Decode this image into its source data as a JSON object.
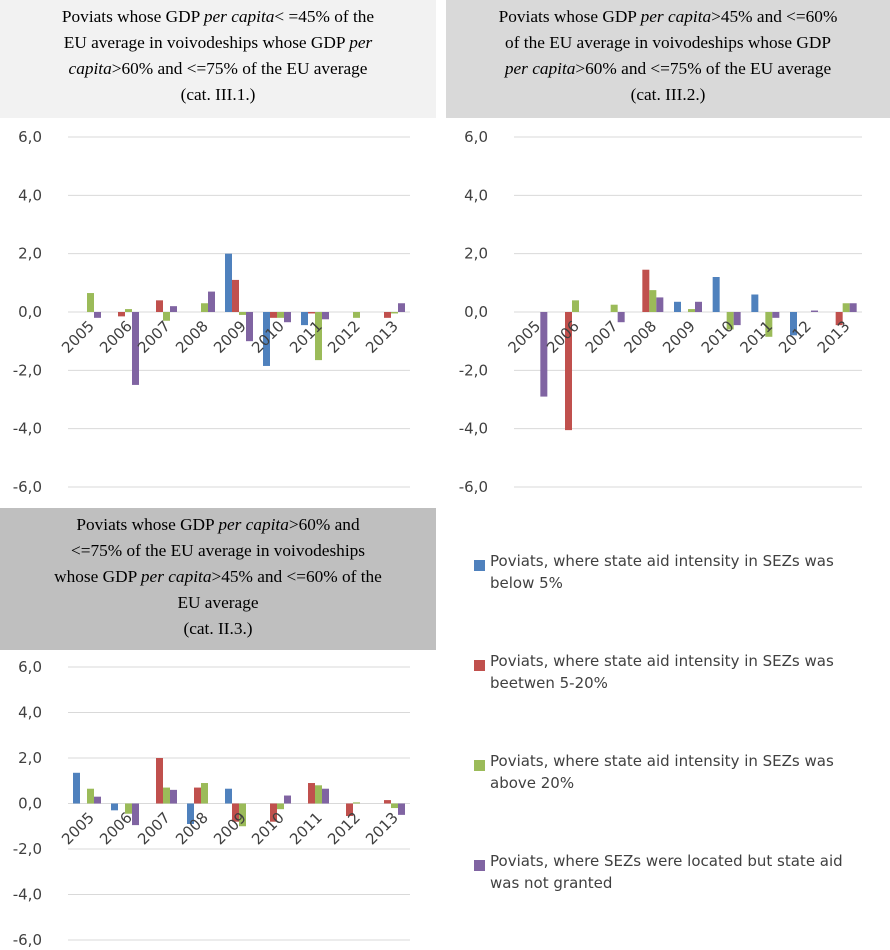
{
  "titles": {
    "panel1": {
      "l1a": "Poviats whose GDP ",
      "l1i": "per capita",
      "l1b": "< =45% of the",
      "l2a": "EU average in voivodeships whose GDP ",
      "l2i": "per",
      "l3i": "capita",
      "l3b": ">60% and <=75% of the  EU average",
      "l4": "(cat. III.1.)"
    },
    "panel2": {
      "l1a": "Poviats whose GDP ",
      "l1i": "per capita",
      "l1b": ">45% and <=60%",
      "l2": "of the EU average in voivodeships whose GDP",
      "l3i": "per capita",
      "l3b": ">60% and <=75% of the EU average",
      "l4": "(cat. III.2.)"
    },
    "panel3": {
      "l1a": "Poviats whose GDP ",
      "l1i": "per capita",
      "l1b": ">60% and",
      "l2": "<=75% of the EU average in voivodeships",
      "l3a": "whose GDP ",
      "l3i": "per capita",
      "l3b": ">45% and <=60% of the",
      "l4": "EU average",
      "l5": "(cat. II.3.)"
    }
  },
  "legend": [
    {
      "label": "Poviats, where state aid intensity in SEZs was below 5%",
      "color": "#4f81bd"
    },
    {
      "label": "Poviats, where state aid intensity in SEZs was beetwen 5-20%",
      "color": "#c0504d"
    },
    {
      "label": "Poviats, where state aid intensity in SEZs was above 20%",
      "color": "#9bbb59"
    },
    {
      "label": "Poviats, where SEZs were located but state aid was not granted",
      "color": "#8064a2"
    }
  ],
  "chart_data": [
    {
      "type": "bar",
      "categories": [
        "2005",
        "2006",
        "2007",
        "2008",
        "2009",
        "2010",
        "2011",
        "2012",
        "2013"
      ],
      "ylim": [
        -6,
        6
      ],
      "yticks": [
        "6,0",
        "4,0",
        "2,0",
        "0,0",
        "-2,0",
        "-4,0",
        "-6,0"
      ],
      "series": [
        {
          "name": "Poviats, where state aid intensity in SEZs was below 5%",
          "color": "#4f81bd",
          "values": [
            0,
            0,
            0,
            0,
            2.0,
            -1.85,
            -0.45,
            0,
            0
          ]
        },
        {
          "name": "Poviats, where state aid intensity in SEZs was beetwen 5-20%",
          "color": "#c0504d",
          "values": [
            0,
            -0.15,
            0.4,
            0,
            1.1,
            -0.2,
            -0.05,
            0,
            -0.2
          ]
        },
        {
          "name": "Poviats, where state aid intensity in SEZs was above 20%",
          "color": "#9bbb59",
          "values": [
            0.65,
            0.1,
            -0.3,
            0.3,
            -0.1,
            -0.2,
            -1.65,
            -0.2,
            -0.05
          ]
        },
        {
          "name": "Poviats, where SEZs were located but state aid was not granted",
          "color": "#8064a2",
          "values": [
            -0.2,
            -2.5,
            0.2,
            0.7,
            -1.0,
            -0.35,
            -0.25,
            0,
            0.3
          ]
        }
      ]
    },
    {
      "type": "bar",
      "categories": [
        "2005",
        "2006",
        "2007",
        "2008",
        "2009",
        "2010",
        "2011",
        "2012",
        "2013"
      ],
      "ylim": [
        -6,
        6
      ],
      "yticks": [
        "6,0",
        "4,0",
        "2,0",
        "0,0",
        "-2,0",
        "-4,0",
        "-6,0"
      ],
      "series": [
        {
          "name": "Poviats, where state aid intensity in SEZs was below 5%",
          "color": "#4f81bd",
          "values": [
            0,
            0,
            0,
            0,
            0.35,
            1.2,
            0.6,
            -0.8,
            0
          ]
        },
        {
          "name": "Poviats, where state aid intensity in SEZs was beetwen 5-20%",
          "color": "#c0504d",
          "values": [
            0,
            -4.05,
            0,
            1.45,
            0,
            0,
            0,
            0,
            -0.45
          ]
        },
        {
          "name": "Poviats, where state aid intensity in SEZs was above 20%",
          "color": "#9bbb59",
          "values": [
            0,
            0.4,
            0.25,
            0.75,
            0.1,
            -0.6,
            -0.85,
            0,
            0.3
          ]
        },
        {
          "name": "Poviats, where SEZs were located but state aid was not granted",
          "color": "#8064a2",
          "values": [
            -2.9,
            0,
            -0.35,
            0.5,
            0.35,
            -0.45,
            -0.2,
            0.05,
            0.3
          ]
        }
      ]
    },
    {
      "type": "bar",
      "categories": [
        "2005",
        "2006",
        "2007",
        "2008",
        "2009",
        "2010",
        "2011",
        "2012",
        "2013"
      ],
      "ylim": [
        -6,
        6
      ],
      "yticks": [
        "6,0",
        "4,0",
        "2,0",
        "0,0",
        "-2,0",
        "-4,0",
        "-6,0"
      ],
      "series": [
        {
          "name": "Poviats, where state aid intensity in SEZs was below 5%",
          "color": "#4f81bd",
          "values": [
            1.35,
            -0.3,
            0,
            -0.9,
            0.65,
            0,
            0,
            0,
            0
          ]
        },
        {
          "name": "Poviats, where state aid intensity in SEZs was beetwen 5-20%",
          "color": "#c0504d",
          "values": [
            0,
            0,
            2.0,
            0.7,
            -0.8,
            -0.8,
            0.9,
            -0.55,
            0.15
          ]
        },
        {
          "name": "Poviats, where state aid intensity in SEZs was above 20%",
          "color": "#9bbb59",
          "values": [
            0.65,
            -0.45,
            0.7,
            0.9,
            -1.0,
            -0.25,
            0.8,
            0.05,
            -0.2
          ]
        },
        {
          "name": "Poviats, where SEZs were located but state aid was not granted",
          "color": "#8064a2",
          "values": [
            0.3,
            -0.95,
            0.6,
            0,
            0,
            0.35,
            0.65,
            0,
            -0.5
          ]
        }
      ]
    }
  ]
}
